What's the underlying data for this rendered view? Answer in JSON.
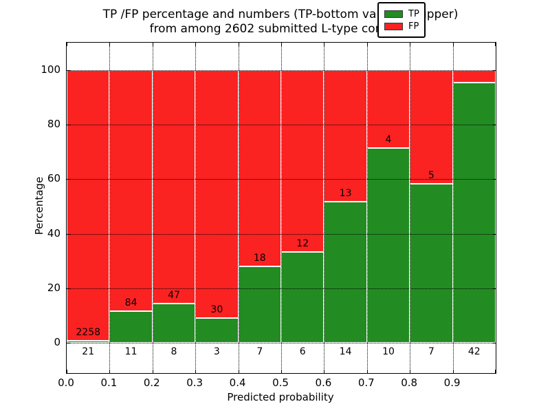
{
  "title": {
    "line1": "TP /FP percentage and numbers (TP-bottom value, FP-upper)",
    "line2": "from among 2602 submitted L-type contacts"
  },
  "chart_data": {
    "type": "bar",
    "stacked": true,
    "title": "TP /FP percentage and numbers (TP-bottom value, FP-upper) from among 2602 submitted L-type contacts",
    "xlabel": "Predicted probability",
    "ylabel": "Percentage",
    "xlim": [
      0.0,
      1.0
    ],
    "ylim": [
      -11,
      110
    ],
    "grid": "dotted",
    "bin_width": 0.1,
    "bin_starts": [
      0.0,
      0.1,
      0.2,
      0.3,
      0.4,
      0.5,
      0.6,
      0.7,
      0.8,
      0.9
    ],
    "x_tick_labels": [
      "0.0",
      "0.1",
      "0.2",
      "0.3",
      "0.4",
      "0.5",
      "0.6",
      "0.7",
      "0.8",
      "0.9"
    ],
    "y_tick_values": [
      0,
      20,
      40,
      60,
      80,
      100
    ],
    "y_tick_labels": [
      "0",
      "20",
      "40",
      "60",
      "80",
      "100"
    ],
    "series": [
      {
        "name": "TP",
        "color": "#228b22",
        "counts": [
          21,
          11,
          8,
          3,
          7,
          6,
          14,
          10,
          7,
          42
        ]
      },
      {
        "name": "FP",
        "color": "#fb2222",
        "counts": [
          2258,
          84,
          47,
          30,
          18,
          12,
          13,
          4,
          5,
          null
        ]
      }
    ],
    "tp_value_labels": [
      "21",
      "11",
      "8",
      "3",
      "7",
      "6",
      "14",
      "10",
      "7",
      "42"
    ],
    "fp_value_labels": [
      "2258",
      "84",
      "47",
      "30",
      "18",
      "12",
      "13",
      "4",
      "5",
      ""
    ],
    "tp_percent": [
      0.92,
      11.58,
      14.55,
      9.09,
      28.0,
      33.33,
      51.85,
      71.43,
      58.33,
      95.45
    ],
    "legend": {
      "position": "upper right",
      "entries": [
        {
          "label": "TP",
          "color": "#228b22"
        },
        {
          "label": "FP",
          "color": "#fb2222"
        }
      ]
    }
  }
}
